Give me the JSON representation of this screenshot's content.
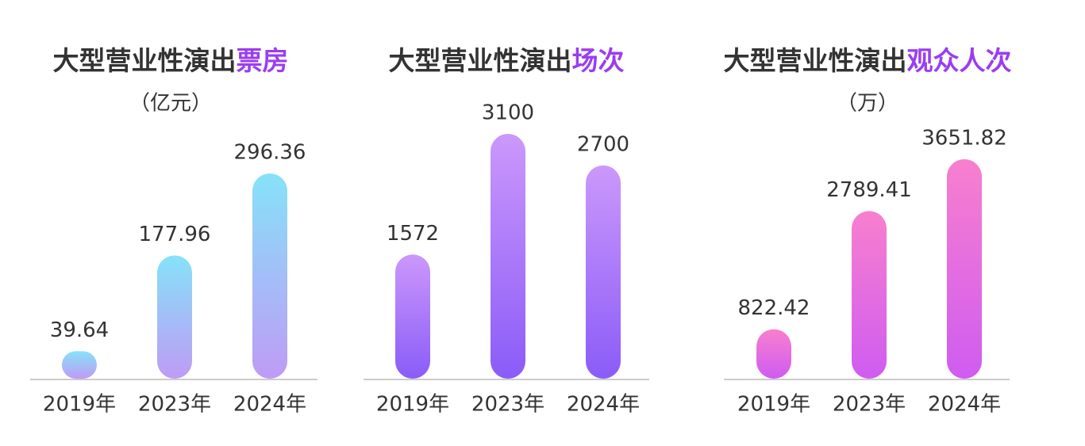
{
  "chart_data": [
    {
      "type": "bar",
      "title": [
        "大型营业性演出",
        "票房"
      ],
      "subtitle": "（亿元）",
      "categories": [
        "2019年",
        "2023年",
        "2024年"
      ],
      "values": [
        39.64,
        177.96,
        296.36
      ],
      "colors": [
        "#86e2f8",
        "#bf9bf6"
      ]
    },
    {
      "type": "bar",
      "title": [
        "大型营业性演出",
        "场次"
      ],
      "categories": [
        "2019年",
        "2023年",
        "2024年"
      ],
      "values": [
        1572,
        3100,
        2700
      ],
      "colors": [
        "#cb98fb",
        "#8a5cf8"
      ]
    },
    {
      "type": "bar",
      "title": [
        "大型营业性演出",
        "观众人次"
      ],
      "subtitle": "（万）",
      "categories": [
        "2019年",
        "2023年",
        "2024年"
      ],
      "values": [
        822.42,
        2789.41,
        3651.82
      ],
      "colors": [
        "#f87fce",
        "#cf5cf1"
      ]
    }
  ]
}
